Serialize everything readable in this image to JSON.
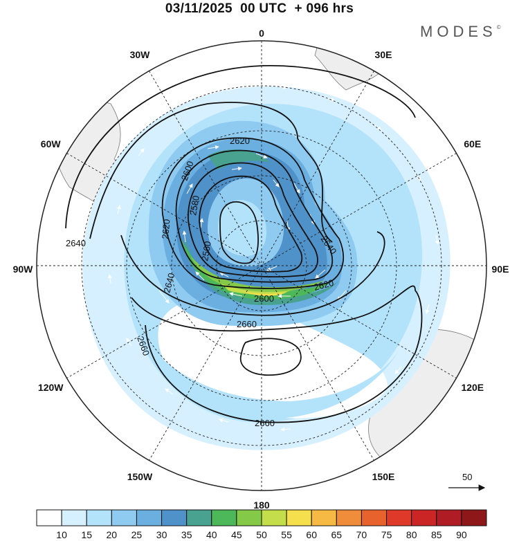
{
  "header": {
    "title": "03/11/2025  00 UTC  + 096 hrs",
    "brand": "MODES",
    "brand_mark": "©"
  },
  "map": {
    "projection": "south-polar-stereographic",
    "longitude_labels": [
      {
        "text": "0",
        "lon": 0
      },
      {
        "text": "30E",
        "lon": 30
      },
      {
        "text": "60E",
        "lon": 60
      },
      {
        "text": "90E",
        "lon": 90
      },
      {
        "text": "120E",
        "lon": 120
      },
      {
        "text": "150E",
        "lon": 150
      },
      {
        "text": "180",
        "lon": 180
      },
      {
        "text": "150W",
        "lon": -150
      },
      {
        "text": "120W",
        "lon": -120
      },
      {
        "text": "90W",
        "lon": -90
      },
      {
        "text": "60W",
        "lon": -60
      },
      {
        "text": "30W",
        "lon": -30
      }
    ],
    "contour_labels": [
      "2620",
      "2600",
      "2580",
      "2620",
      "2640",
      "2560",
      "2640",
      "2640",
      "2600",
      "2620",
      "2660",
      "2660",
      "2660"
    ],
    "reference_vector": {
      "value": "50"
    }
  },
  "colorbar": {
    "ticks": [
      "10",
      "15",
      "20",
      "25",
      "30",
      "35",
      "40",
      "45",
      "50",
      "55",
      "60",
      "65",
      "70",
      "75",
      "80",
      "85",
      "90"
    ],
    "colors": [
      "#ffffff",
      "#d6f0ff",
      "#b3e2fb",
      "#8fcbf0",
      "#6aafe0",
      "#4f91c9",
      "#48a28f",
      "#4cb85a",
      "#84c948",
      "#c4dd4a",
      "#f6df4c",
      "#f5b944",
      "#ef8d3a",
      "#e8622e",
      "#df3a29",
      "#cc2526",
      "#b01c24",
      "#8e1719"
    ]
  }
}
